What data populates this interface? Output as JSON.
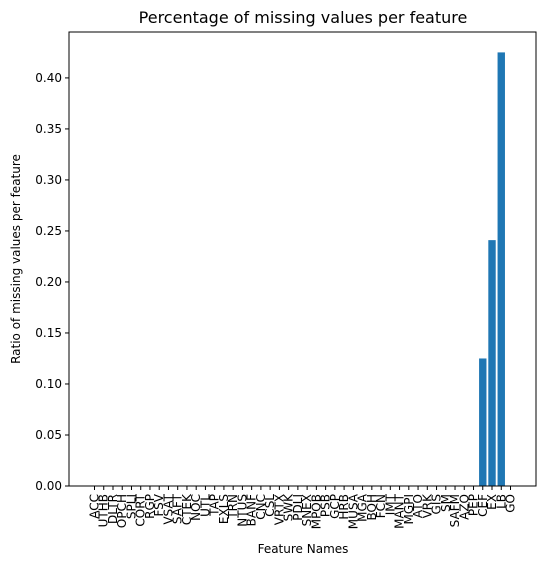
{
  "chart_data": {
    "type": "bar",
    "title": "Percentage of missing values per feature",
    "xlabel": "Feature Names",
    "ylabel": "Ratio of missing values per feature",
    "categories": [
      "ACC",
      "UTHB",
      "DLTR",
      "OPCH",
      "SPLI",
      "CORT",
      "RGP",
      "FSV",
      "VSAT",
      "SAFT",
      "CTEK",
      "NOC",
      "UTL",
      "TAP",
      "EXLS",
      "TRN",
      "NTUS",
      "BANF",
      "CNC",
      "CSL",
      "VRTX",
      "SWK",
      "PDLI",
      "SNEX",
      "MPOB",
      "PSB",
      "GCP",
      "HRB",
      "MUSA",
      "MGA",
      "BOH",
      "FCN",
      "IMT",
      "MANT",
      "MGPI",
      "ATO",
      "VRK",
      "GIS",
      "SM",
      "SAFM",
      "AZO",
      "PEP",
      "CEF",
      "EX",
      "LB",
      "GO"
    ],
    "values": [
      0,
      0,
      0,
      0,
      0,
      0,
      0,
      0,
      0,
      0,
      0,
      0,
      0,
      0,
      0,
      0,
      0,
      0,
      0,
      0,
      0,
      0,
      0,
      0,
      0,
      0,
      0,
      0,
      0,
      0,
      0,
      0,
      0,
      0,
      0,
      0,
      0,
      0,
      0,
      0,
      0,
      0,
      0.125,
      0.241,
      0.425,
      0
    ],
    "ylim": [
      0,
      0.445
    ],
    "yticks": [
      "0.00",
      "0.05",
      "0.10",
      "0.15",
      "0.20",
      "0.25",
      "0.30",
      "0.35",
      "0.40"
    ],
    "bar_color": "#1f77b4",
    "grid": false,
    "legend": "none"
  }
}
